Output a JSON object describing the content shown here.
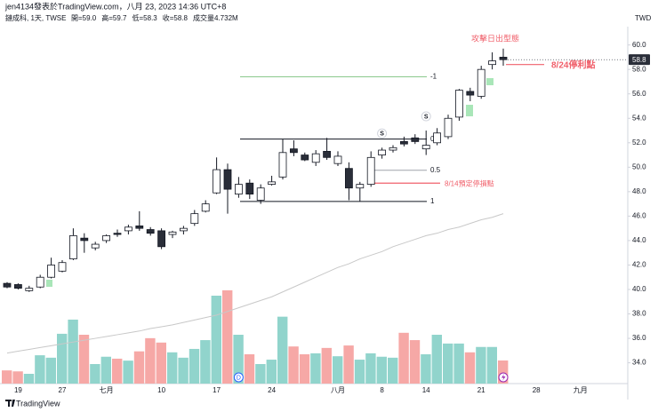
{
  "header": {
    "credit": "jen4134發表於TradingView.com，八月 23, 2023 14:36 UTC+8"
  },
  "footer": {
    "brand": "TradingView"
  },
  "chart_data": {
    "type": "candlestick",
    "legend": {
      "symbol": "鏈成科, 1天, TWSE",
      "items": [
        "開=59.0",
        "高=59.7",
        "低=58.3",
        "收=58.8",
        "成交量4.732M"
      ]
    },
    "currency": "TWD",
    "categories": [
      null,
      "19",
      null,
      null,
      null,
      "27",
      null,
      null,
      null,
      "七月",
      null,
      null,
      null,
      null,
      "10",
      null,
      null,
      null,
      null,
      "17",
      null,
      null,
      null,
      null,
      "24",
      null,
      null,
      null,
      null,
      null,
      "八月",
      null,
      null,
      null,
      "8",
      null,
      null,
      null,
      "14",
      null,
      null,
      null,
      null,
      "21",
      null,
      null,
      null,
      null,
      "28",
      null,
      null,
      null,
      "九月"
    ],
    "open": [
      40.5,
      40.4,
      39.9,
      40.2,
      41.0,
      41.5,
      42.5,
      44.2,
      43.4,
      44.0,
      44.6,
      44.8,
      45.2,
      44.9,
      44.8,
      44.5,
      44.8,
      45.4,
      46.4,
      47.9,
      49.8,
      47.8,
      48.7,
      47.3,
      48.6,
      49.2,
      51.5,
      51.0,
      50.4,
      51.3,
      50.3,
      49.9,
      48.3,
      48.6,
      51.0,
      51.4,
      52.1,
      52.4,
      51.5,
      52.0,
      52.5,
      54.1,
      56.2,
      55.8,
      58.4,
      59.0,
      null,
      null,
      null,
      null,
      null,
      null,
      null
    ],
    "high": [
      40.6,
      40.5,
      40.3,
      41.2,
      42.6,
      42.4,
      45.0,
      44.6,
      43.9,
      44.5,
      44.9,
      45.3,
      46.4,
      45.1,
      45.0,
      44.8,
      45.2,
      46.5,
      47.3,
      50.8,
      50.3,
      49.2,
      49.0,
      48.6,
      49.3,
      52.3,
      52.2,
      51.2,
      51.4,
      52.4,
      51.3,
      50.4,
      48.8,
      51.3,
      51.6,
      51.8,
      52.5,
      52.7,
      53.0,
      53.2,
      54.3,
      56.4,
      56.5,
      58.3,
      59.4,
      59.7,
      null,
      null,
      null,
      null,
      null,
      null,
      null
    ],
    "low": [
      40.1,
      40.0,
      39.8,
      40.1,
      40.9,
      41.4,
      42.4,
      43.0,
      43.2,
      43.8,
      44.3,
      44.5,
      44.8,
      44.4,
      43.3,
      44.2,
      44.5,
      45.2,
      46.3,
      47.8,
      46.2,
      47.5,
      47.4,
      47.0,
      48.5,
      49.0,
      50.9,
      50.5,
      50.1,
      50.6,
      50.1,
      47.3,
      47.2,
      48.4,
      50.7,
      51.2,
      51.7,
      51.9,
      51.0,
      51.8,
      52.3,
      53.8,
      55.4,
      55.6,
      58.0,
      58.3,
      null,
      null,
      null,
      null,
      null,
      null,
      null
    ],
    "close": [
      40.2,
      40.1,
      40.1,
      41.0,
      42.0,
      42.2,
      44.4,
      44.0,
      43.7,
      44.4,
      44.5,
      45.1,
      45.0,
      44.6,
      43.5,
      44.7,
      45.0,
      46.2,
      47.0,
      49.8,
      48.2,
      48.6,
      47.8,
      48.3,
      48.8,
      51.2,
      51.2,
      50.6,
      51.1,
      50.8,
      50.9,
      48.3,
      48.6,
      50.8,
      51.4,
      51.6,
      51.9,
      52.1,
      51.8,
      52.8,
      54.0,
      56.3,
      55.9,
      58.0,
      58.7,
      58.8,
      null,
      null,
      null,
      null,
      null,
      null,
      null
    ],
    "volume": [
      2.7,
      2.5,
      2.0,
      5.8,
      5.3,
      10.2,
      13.1,
      10.0,
      4.0,
      5.5,
      5.1,
      4.7,
      6.6,
      9.3,
      8.4,
      6.4,
      5.3,
      7.1,
      8.9,
      18.0,
      19.1,
      10.0,
      6.0,
      4.0,
      4.9,
      13.7,
      7.6,
      6.0,
      6.2,
      7.3,
      5.6,
      7.8,
      4.9,
      6.2,
      5.5,
      5.3,
      10.4,
      8.9,
      6.0,
      10.0,
      8.2,
      8.2,
      6.4,
      7.5,
      7.5,
      4.732,
      null,
      null,
      null,
      null,
      null,
      null,
      null
    ],
    "volume_lim": [
      0,
      24
    ],
    "ma": {
      "color": "#c8c8c8",
      "values": [
        34.8,
        34.95,
        35.1,
        35.25,
        35.4,
        35.55,
        35.7,
        35.85,
        36.0,
        36.15,
        36.3,
        36.45,
        36.6,
        36.8,
        36.95,
        37.1,
        37.3,
        37.5,
        37.7,
        37.9,
        38.2,
        38.5,
        38.8,
        39.1,
        39.4,
        39.8,
        40.2,
        40.6,
        41.0,
        41.4,
        41.8,
        42.1,
        42.5,
        42.8,
        43.1,
        43.5,
        43.8,
        44.1,
        44.4,
        44.6,
        44.9,
        45.1,
        45.4,
        45.7,
        45.9,
        46.2,
        null,
        null,
        null,
        null,
        null,
        null,
        null
      ]
    },
    "colors": {
      "up_fill": "#ffffff",
      "down_fill": "#2a2e39",
      "wick": "#131722",
      "volume_up": "#91d4cc",
      "volume_down": "#f6a8a6"
    },
    "ylim": [
      32.3,
      61.5
    ],
    "yticks": [
      {
        "value": 34,
        "label": "34.0"
      },
      {
        "value": 36,
        "label": "36.0"
      },
      {
        "value": 38,
        "label": "38.0"
      },
      {
        "value": 40,
        "label": "40.0"
      },
      {
        "value": 42,
        "label": "42.0"
      },
      {
        "value": 44,
        "label": "44.0"
      },
      {
        "value": 46,
        "label": "46.0"
      },
      {
        "value": 48,
        "label": "48.0"
      },
      {
        "value": 50,
        "label": "50.0"
      },
      {
        "value": 52,
        "label": "52.0"
      },
      {
        "value": 54,
        "label": "54.0"
      },
      {
        "value": 56,
        "label": "56.0"
      },
      {
        "value": 58,
        "label": "58.0"
      },
      {
        "value": 60,
        "label": "60.0"
      }
    ],
    "last_price": {
      "value": 58.8,
      "label": "58.8"
    },
    "fib_levels": [
      {
        "level": -1,
        "price": 57.4,
        "color": "#8bc98d"
      },
      {
        "level": 0,
        "price": 52.3,
        "color": "#131722"
      },
      {
        "level": 0.5,
        "price": 49.75,
        "color": "#9fa3ab"
      },
      {
        "level": 1,
        "price": 47.2,
        "color": "#131722"
      }
    ],
    "annotations": [
      {
        "text": "8/24停利點",
        "price": 58.4,
        "color": "#f0606b"
      },
      {
        "text": "8/14預定停損點",
        "price": 48.7,
        "color": "#f0606b"
      }
    ],
    "pattern_note": {
      "text": "攻擊日出型態",
      "color": "#f0606b"
    },
    "markers": [
      "S",
      "S"
    ],
    "events": [
      "D"
    ]
  }
}
